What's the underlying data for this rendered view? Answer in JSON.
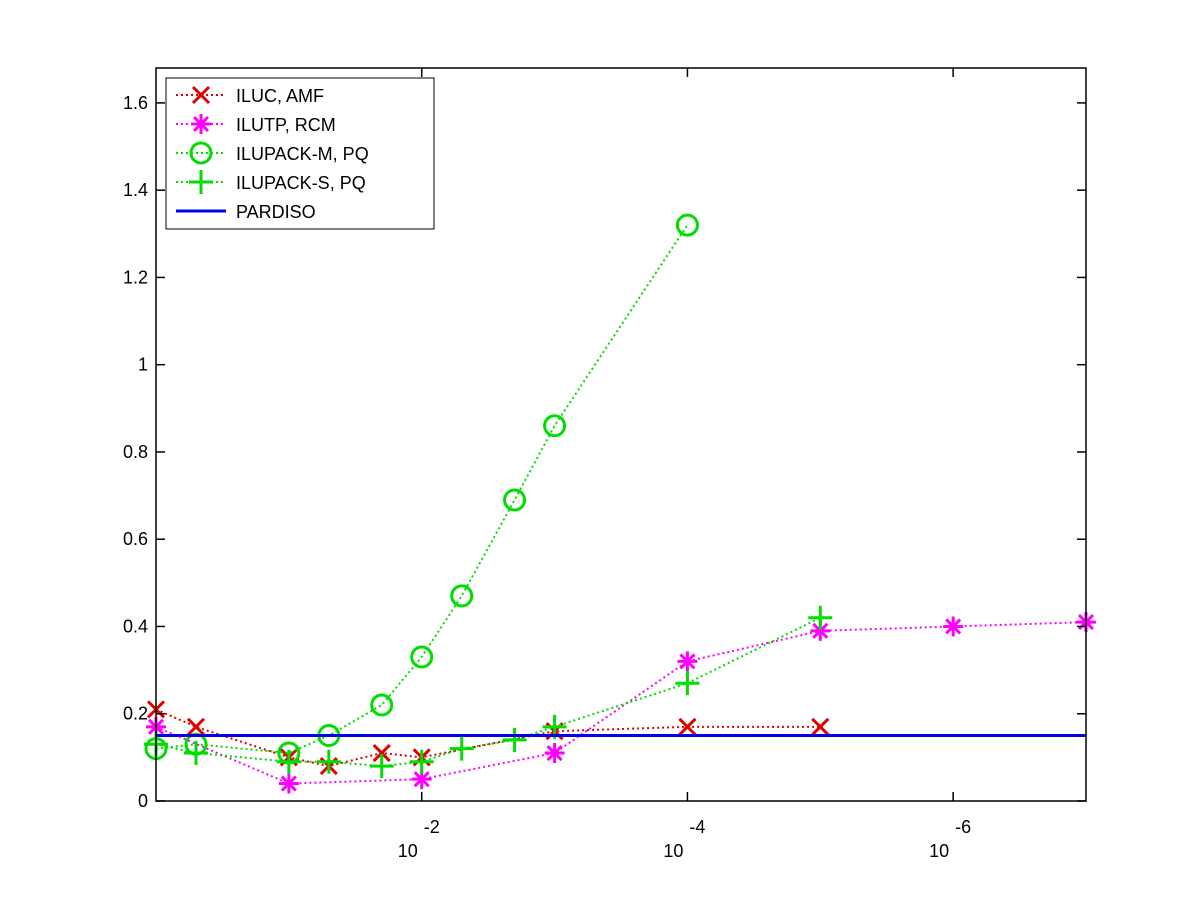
{
  "chart_data": {
    "type": "line",
    "x_scale": "log-reversed",
    "xlim": [
      1,
      1e-07
    ],
    "ylim": [
      0,
      1.68
    ],
    "grid": false,
    "legend_position": "top-left",
    "xticks": [
      {
        "value": 0.01,
        "base": "10",
        "exp": "-2"
      },
      {
        "value": 0.0001,
        "base": "10",
        "exp": "-4"
      },
      {
        "value": 1e-06,
        "base": "10",
        "exp": "-6"
      }
    ],
    "yticks": [
      {
        "value": 0,
        "label": "0"
      },
      {
        "value": 0.2,
        "label": "0.2"
      },
      {
        "value": 0.4,
        "label": "0.4"
      },
      {
        "value": 0.6,
        "label": "0.6"
      },
      {
        "value": 0.8,
        "label": "0.8"
      },
      {
        "value": 1.0,
        "label": "1"
      },
      {
        "value": 1.2,
        "label": "1.2"
      },
      {
        "value": 1.4,
        "label": "1.4"
      },
      {
        "value": 1.6,
        "label": "1.6"
      }
    ],
    "series": [
      {
        "name": "ILUC, AMF",
        "color": "#e00000",
        "marker": "x",
        "line": "dotted",
        "points": [
          {
            "x": 1.0,
            "y": 0.21
          },
          {
            "x": 0.5,
            "y": 0.17
          },
          {
            "x": 0.1,
            "y": 0.1
          },
          {
            "x": 0.05,
            "y": 0.08
          },
          {
            "x": 0.02,
            "y": 0.11
          },
          {
            "x": 0.01,
            "y": 0.1
          },
          {
            "x": 0.001,
            "y": 0.16
          },
          {
            "x": 0.0001,
            "y": 0.17
          },
          {
            "x": 1e-05,
            "y": 0.17
          }
        ]
      },
      {
        "name": "ILUTP, RCM",
        "color": "#ff00ff",
        "marker": "asterisk",
        "line": "dotted",
        "points": [
          {
            "x": 1.0,
            "y": 0.17
          },
          {
            "x": 0.1,
            "y": 0.04
          },
          {
            "x": 0.01,
            "y": 0.05
          },
          {
            "x": 0.001,
            "y": 0.11
          },
          {
            "x": 0.0001,
            "y": 0.32
          },
          {
            "x": 1e-05,
            "y": 0.39
          },
          {
            "x": 1e-06,
            "y": 0.4
          },
          {
            "x": 1e-07,
            "y": 0.41
          }
        ]
      },
      {
        "name": "ILUPACK-M, PQ",
        "color": "#00dd00",
        "marker": "circle",
        "line": "dotted",
        "points": [
          {
            "x": 1.0,
            "y": 0.12
          },
          {
            "x": 0.5,
            "y": 0.13
          },
          {
            "x": 0.1,
            "y": 0.11
          },
          {
            "x": 0.05,
            "y": 0.15
          },
          {
            "x": 0.02,
            "y": 0.22
          },
          {
            "x": 0.01,
            "y": 0.33
          },
          {
            "x": 0.005,
            "y": 0.47
          },
          {
            "x": 0.002,
            "y": 0.69
          },
          {
            "x": 0.001,
            "y": 0.86
          },
          {
            "x": 0.0001,
            "y": 1.32
          }
        ]
      },
      {
        "name": "ILUPACK-S, PQ",
        "color": "#00dd00",
        "marker": "plus",
        "line": "dotted",
        "points": [
          {
            "x": 1.0,
            "y": 0.13
          },
          {
            "x": 0.5,
            "y": 0.11
          },
          {
            "x": 0.1,
            "y": 0.09
          },
          {
            "x": 0.05,
            "y": 0.09
          },
          {
            "x": 0.02,
            "y": 0.08
          },
          {
            "x": 0.01,
            "y": 0.09
          },
          {
            "x": 0.005,
            "y": 0.12
          },
          {
            "x": 0.002,
            "y": 0.14
          },
          {
            "x": 0.001,
            "y": 0.17
          },
          {
            "x": 0.0001,
            "y": 0.27
          },
          {
            "x": 1e-05,
            "y": 0.42
          }
        ]
      },
      {
        "name": "PARDISO",
        "color": "#0000ee",
        "marker": "none",
        "line": "solid",
        "points": [
          {
            "x": 1.0,
            "y": 0.15
          },
          {
            "x": 1e-07,
            "y": 0.15
          }
        ]
      }
    ]
  }
}
